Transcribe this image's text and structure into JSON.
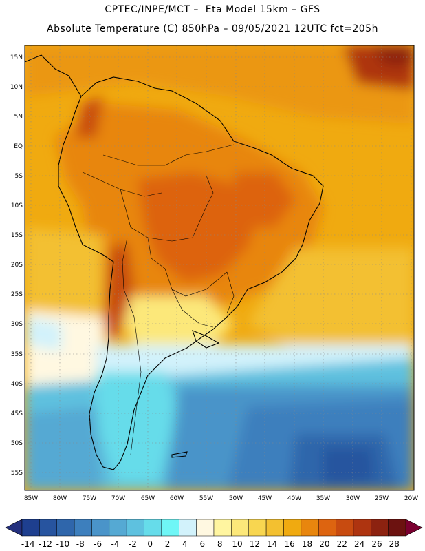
{
  "header": {
    "line1": "CPTEC/INPE/MCT –  Eta Model 15km – GFS",
    "line2": "Absolute Temperature (C) 850hPa – 09/05/2021 12UTC fct=205h"
  },
  "axes": {
    "lat_labels": [
      "15N",
      "10N",
      "5N",
      "EQ",
      "5S",
      "10S",
      "15S",
      "20S",
      "25S",
      "30S",
      "35S",
      "40S",
      "45S",
      "50S",
      "55S"
    ],
    "lon_labels": [
      "85W",
      "80W",
      "75W",
      "70W",
      "65W",
      "60W",
      "55W",
      "50W",
      "45W",
      "40W",
      "35W",
      "30W",
      "25W",
      "20W"
    ]
  },
  "colorbar": {
    "ticks": [
      "-14",
      "-12",
      "-10",
      "-8",
      "-6",
      "-4",
      "-2",
      "0",
      "2",
      "4",
      "6",
      "8",
      "10",
      "12",
      "14",
      "16",
      "18",
      "20",
      "22",
      "24",
      "26",
      "28"
    ],
    "colors": [
      "#1e3f8f",
      "#27549f",
      "#2f66ab",
      "#3d7fbd",
      "#4a94c9",
      "#55a9d3",
      "#5ec1df",
      "#66dcea",
      "#6ff6f6",
      "#d2f2fb",
      "#fff8e1",
      "#fff5a0",
      "#fce87a",
      "#f8d650",
      "#f3c030",
      "#f0aa10",
      "#e8860e",
      "#dd6410",
      "#c84b10",
      "#ae3410",
      "#8c2210",
      "#6c1210"
    ],
    "under_color": "#24307e",
    "over_color": "#7a0030"
  },
  "map_data": {
    "type": "filled-contour-map",
    "variable": "Absolute Temperature (C) at 850hPa",
    "units": "°C",
    "lon_range": [
      -86,
      -19
    ],
    "lat_range": [
      18,
      -58
    ],
    "regions": [
      {
        "name": "northern-ocean",
        "temp": 18
      },
      {
        "name": "amazon-basin",
        "temp": 20
      },
      {
        "name": "central-brazil-interior",
        "temp": 22
      },
      {
        "name": "andes-east-slope",
        "temp": 24
      },
      {
        "name": "south-atlantic-subtropics",
        "temp": 16
      },
      {
        "name": "uruguay-argentina-plains",
        "temp": 10
      },
      {
        "name": "pacific-chile-coast",
        "temp": 6
      },
      {
        "name": "patagonia",
        "temp": 0
      },
      {
        "name": "southern-ocean",
        "temp": -8
      },
      {
        "name": "drake-passage-core",
        "temp": -12
      },
      {
        "name": "northeast-atlantic-corner",
        "temp": 24
      }
    ]
  }
}
